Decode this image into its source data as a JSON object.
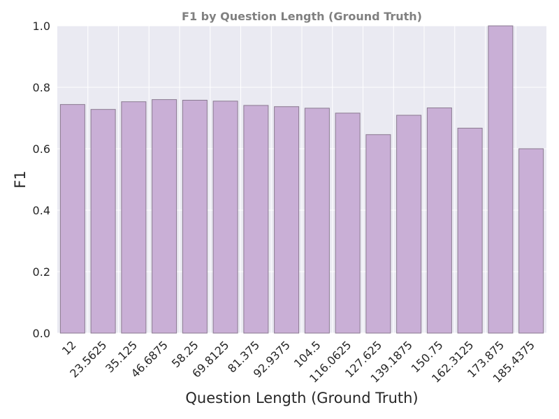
{
  "chart_data": {
    "type": "bar",
    "title": "F1 by Question Length (Ground Truth)",
    "xlabel": "Question Length (Ground Truth)",
    "ylabel": "F1",
    "categories": [
      "12",
      "23.5625",
      "35.125",
      "46.6875",
      "58.25",
      "69.8125",
      "81.375",
      "92.9375",
      "104.5",
      "116.0625",
      "127.625",
      "139.1875",
      "150.75",
      "162.3125",
      "173.875",
      "185.4375"
    ],
    "values": [
      0.744,
      0.728,
      0.753,
      0.76,
      0.758,
      0.755,
      0.741,
      0.737,
      0.732,
      0.716,
      0.646,
      0.709,
      0.733,
      0.667,
      1.0,
      0.6
    ],
    "yticks": [
      "0.0",
      "0.2",
      "0.4",
      "0.6",
      "0.8",
      "1.0"
    ],
    "ylim": [
      0,
      1.0
    ],
    "grid": true,
    "colors": {
      "bar": "#c9afd6",
      "bar_edge": "#8a7a90",
      "plot_bg": "#eaeaf2",
      "grid": "#ffffff"
    }
  }
}
